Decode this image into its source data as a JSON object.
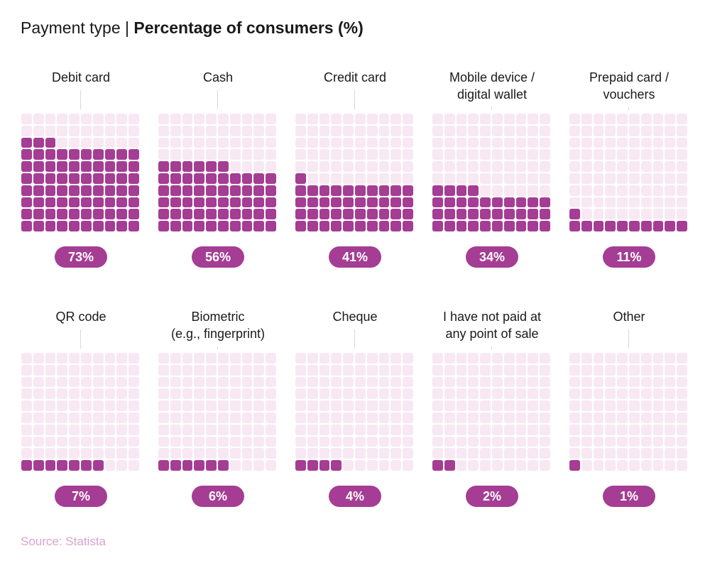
{
  "header": {
    "title_prefix": "Payment type | ",
    "title_bold": "Percentage of consumers (%)"
  },
  "footer": {
    "source": "Source: Statista"
  },
  "colors": {
    "filled": "#a43d93",
    "empty": "#f7e8f3",
    "source_text": "#d9a3cf"
  },
  "chart_data": {
    "type": "waffle",
    "title": "Payment type | Percentage of consumers (%)",
    "grid": "10x10 (100 cells = 100%)",
    "categories": [
      "Debit card",
      "Cash",
      "Credit card",
      "Mobile device / digital wallet",
      "Prepaid card / vouchers",
      "QR code",
      "Biometric (e.g., fingerprint)",
      "Cheque",
      "I have not paid at any point of sale",
      "Other"
    ],
    "values": [
      73,
      56,
      41,
      34,
      11,
      7,
      6,
      4,
      2,
      1
    ],
    "items": [
      {
        "label_lines": [
          "Debit card"
        ],
        "value": 73,
        "value_label": "73%"
      },
      {
        "label_lines": [
          "Cash"
        ],
        "value": 56,
        "value_label": "56%"
      },
      {
        "label_lines": [
          "Credit card"
        ],
        "value": 41,
        "value_label": "41%"
      },
      {
        "label_lines": [
          "Mobile device /",
          "digital wallet"
        ],
        "value": 34,
        "value_label": "34%"
      },
      {
        "label_lines": [
          "Prepaid card /",
          "vouchers"
        ],
        "value": 11,
        "value_label": "11%"
      },
      {
        "label_lines": [
          "QR code"
        ],
        "value": 7,
        "value_label": "7%"
      },
      {
        "label_lines": [
          "Biometric",
          "(e.g., fingerprint)"
        ],
        "value": 6,
        "value_label": "6%"
      },
      {
        "label_lines": [
          "Cheque"
        ],
        "value": 4,
        "value_label": "4%"
      },
      {
        "label_lines": [
          "I have not paid at",
          "any point of sale"
        ],
        "value": 2,
        "value_label": "2%"
      },
      {
        "label_lines": [
          "Other"
        ],
        "value": 1,
        "value_label": "1%"
      }
    ]
  }
}
